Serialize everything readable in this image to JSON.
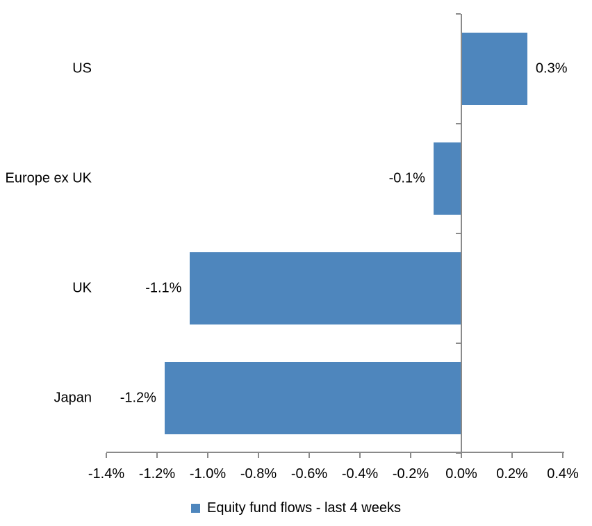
{
  "chart_data": {
    "type": "bar",
    "orientation": "horizontal",
    "categories": [
      "US",
      "Europe ex UK",
      "UK",
      "Japan"
    ],
    "values": [
      0.26,
      -0.11,
      -1.07,
      -1.17
    ],
    "value_labels": [
      "0.3%",
      "-0.1%",
      "-1.1%",
      "-1.2%"
    ],
    "xlim": [
      -1.4,
      0.4
    ],
    "x_ticks": [
      -1.4,
      -1.2,
      -1.0,
      -0.8,
      -0.6,
      -0.4,
      -0.2,
      0.0,
      0.2,
      0.4
    ],
    "x_tick_labels": [
      "-1.4%",
      "-1.2%",
      "-1.0%",
      "-0.8%",
      "-0.6%",
      "-0.4%",
      "-0.2%",
      "0.0%",
      "0.2%",
      "0.4%"
    ],
    "grid": false,
    "legend": {
      "position": "bottom",
      "entries": [
        {
          "label": "Equity fund flows - last 4 weeks",
          "color": "#4E86BD"
        }
      ]
    },
    "colors": {
      "bar": "#4E86BD",
      "axis": "#8A8A8A",
      "text": "#000000",
      "background": "#FFFFFF"
    }
  }
}
